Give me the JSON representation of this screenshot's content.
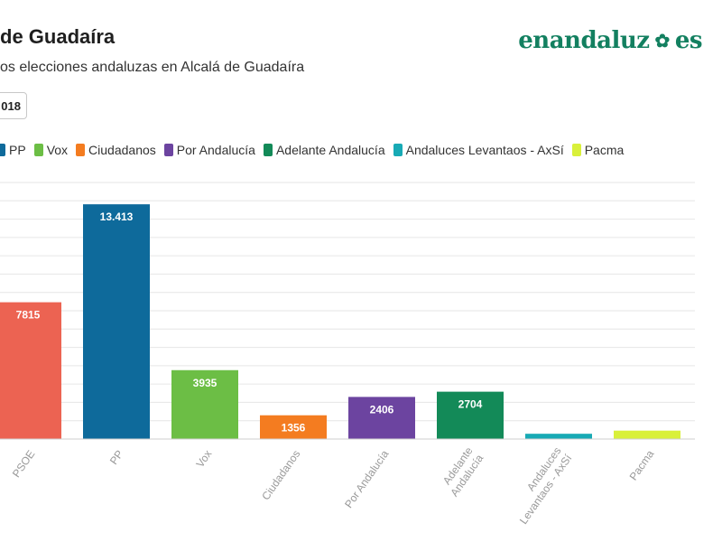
{
  "header": {
    "title": "de Guadaíra",
    "subtitle": "os elecciones andaluzas en Alcalá de Guadaíra",
    "brand": "enandaluz",
    "brand_suffix": "es",
    "year_button": "018"
  },
  "colors": {
    "PSOE": "#ec6352",
    "PP": "#0e6a9b",
    "Vox": "#6cbe45",
    "Ciudadanos": "#f47c20",
    "Por Andalucía": "#6c44a0",
    "Adelante Andalucía": "#138a58",
    "Andaluces Levantaos - AxSí": "#18aab5",
    "Pacma": "#d9f03a",
    "brand": "#138060"
  },
  "legend": [
    {
      "label": "PP",
      "color": "#0e6a9b"
    },
    {
      "label": "Vox",
      "color": "#6cbe45"
    },
    {
      "label": "Ciudadanos",
      "color": "#f47c20"
    },
    {
      "label": "Por Andalucía",
      "color": "#6c44a0"
    },
    {
      "label": "Adelante Andalucía",
      "color": "#138a58"
    },
    {
      "label": "Andaluces Levantaos - AxSí",
      "color": "#18aab5"
    },
    {
      "label": "Pacma",
      "color": "#d9f03a"
    }
  ],
  "chart_data": {
    "type": "bar",
    "title": "",
    "xlabel": "",
    "ylabel": "",
    "ylim": [
      0,
      14000
    ],
    "grid": true,
    "legend_position": "top-left",
    "categories": [
      "PSOE",
      "PP",
      "Vox",
      "Ciudadanos",
      "Por Andalucía",
      "Adelante Andalucía",
      "Andaluces Levantaos - AxSí",
      "Pacma"
    ],
    "values": [
      7815,
      13413,
      3935,
      1356,
      2406,
      2704,
      300,
      480
    ],
    "data_labels": [
      "7815",
      "13.413",
      "3935",
      "1356",
      "2406",
      "2704",
      "",
      ""
    ]
  }
}
